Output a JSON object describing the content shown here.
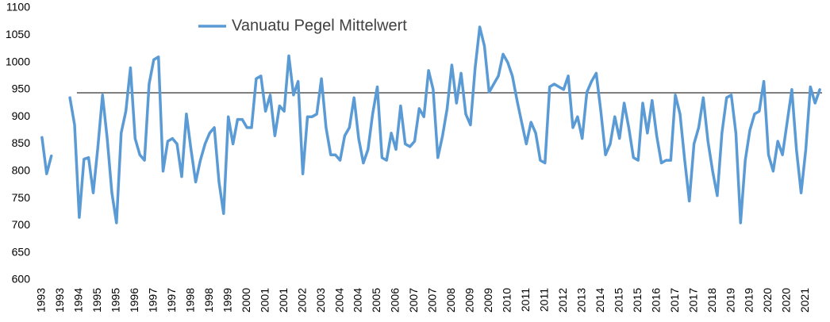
{
  "chart_data": {
    "type": "line",
    "series": [
      {
        "name": "Vanuatu Pegel Mittelwert",
        "color": "#5b9bd5",
        "values": [
          862,
          795,
          828,
          null,
          null,
          null,
          935,
          885,
          715,
          822,
          825,
          760,
          845,
          940,
          860,
          760,
          705,
          870,
          910,
          990,
          860,
          830,
          820,
          960,
          1005,
          1010,
          800,
          855,
          860,
          850,
          790,
          905,
          840,
          780,
          820,
          850,
          870,
          880,
          780,
          722,
          900,
          850,
          895,
          895,
          880,
          880,
          970,
          975,
          910,
          940,
          865,
          920,
          910,
          1012,
          940,
          965,
          795,
          900,
          900,
          905,
          970,
          880,
          830,
          830,
          820,
          865,
          880,
          935,
          860,
          815,
          840,
          905,
          955,
          825,
          820,
          870,
          840,
          920,
          850,
          845,
          855,
          915,
          900,
          985,
          950,
          825,
          865,
          915,
          995,
          925,
          980,
          905,
          885,
          990,
          1065,
          1030,
          945,
          960,
          975,
          1015,
          1000,
          975,
          930,
          890,
          850,
          890,
          870,
          820,
          815,
          955,
          960,
          955,
          950,
          975,
          880,
          900,
          860,
          945,
          965,
          980,
          910,
          830,
          850,
          900,
          860,
          925,
          880,
          825,
          820,
          925,
          870,
          930,
          865,
          815,
          820,
          820,
          940,
          905,
          820,
          745,
          850,
          880,
          935,
          855,
          800,
          755,
          870,
          935,
          940,
          870,
          705,
          820,
          875,
          905,
          910,
          965,
          830,
          800,
          855,
          830,
          890,
          950,
          840,
          760,
          840,
          955,
          925,
          950
        ]
      }
    ],
    "categories": [
      "1993",
      null,
      null,
      null,
      "1993",
      null,
      null,
      null,
      "1994",
      null,
      null,
      null,
      "1995",
      null,
      null,
      null,
      "1995",
      null,
      null,
      null,
      "1996",
      null,
      null,
      null,
      "1997",
      null,
      null,
      null,
      "1997",
      null,
      null,
      null,
      "1998",
      null,
      null,
      null,
      "1998",
      null,
      null,
      null,
      "1999",
      null,
      null,
      null,
      "2000",
      null,
      null,
      null,
      "2001",
      null,
      null,
      null,
      "2001",
      null,
      null,
      null,
      "2002",
      null,
      null,
      null,
      "2003",
      null,
      null,
      null,
      "2004",
      null,
      null,
      null,
      "2004",
      null,
      null,
      null,
      "2005",
      null,
      null,
      null,
      "2006",
      null,
      null,
      null,
      "2007",
      null,
      null,
      null,
      "2007",
      null,
      null,
      null,
      "2008",
      null,
      null,
      null,
      "2009",
      null,
      null,
      null,
      "2009",
      null,
      null,
      null,
      "2010",
      null,
      null,
      null,
      "2011",
      null,
      null,
      null,
      "2011",
      null,
      null,
      null,
      "2012",
      null,
      null,
      null,
      "2013",
      null,
      null,
      null,
      "2014",
      null,
      null,
      null,
      "2015",
      null,
      null,
      null,
      "2015",
      null,
      null,
      null,
      "2016",
      null,
      null,
      null,
      "2017",
      null,
      null,
      null,
      "2017",
      null,
      null,
      null,
      "2018",
      null,
      null,
      null,
      "2019",
      null,
      null,
      null,
      "2019",
      null,
      null,
      null,
      "2020",
      null,
      null,
      null,
      "2020",
      null,
      null,
      null,
      "2021",
      null,
      null,
      null
    ],
    "reference_line": {
      "value": 944,
      "color": "#000000"
    },
    "ylim": [
      600,
      1100
    ],
    "yticks": [
      600,
      650,
      700,
      750,
      800,
      850,
      900,
      950,
      1000,
      1050,
      1100
    ],
    "grid": false
  }
}
